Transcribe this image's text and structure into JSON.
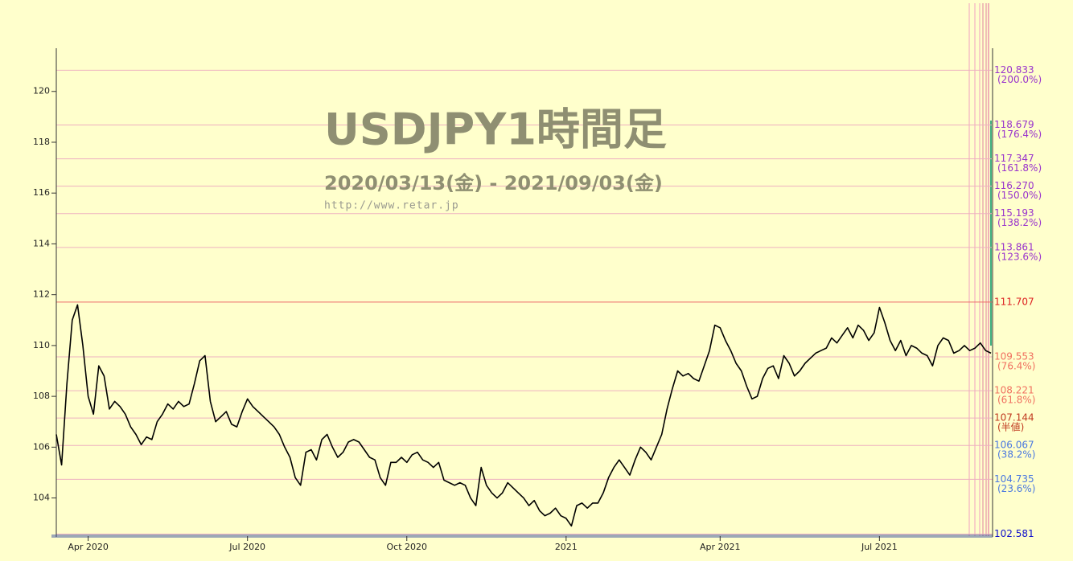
{
  "chart_data": {
    "type": "line",
    "title": "USDJPY1時間足",
    "subtitle": "2020/03/13(金) - 2021/09/03(金)",
    "source": "http://www.retar.jp",
    "color": "#000000",
    "categories": [
      null,
      null,
      null,
      null,
      null,
      null,
      "Apr 2020",
      null,
      null,
      null,
      null,
      null,
      null,
      null,
      null,
      null,
      null,
      null,
      null,
      null,
      null,
      null,
      null,
      null,
      null,
      null,
      null,
      null,
      null,
      null,
      null,
      null,
      null,
      null,
      null,
      null,
      "Jul 2020",
      null,
      null,
      null,
      null,
      null,
      null,
      null,
      null,
      null,
      null,
      null,
      null,
      null,
      null,
      null,
      null,
      null,
      null,
      null,
      null,
      null,
      null,
      null,
      null,
      null,
      null,
      null,
      null,
      null,
      "Oct 2020",
      null,
      null,
      null,
      null,
      null,
      null,
      null,
      null,
      null,
      null,
      null,
      null,
      null,
      null,
      null,
      null,
      null,
      null,
      null,
      null,
      null,
      null,
      null,
      null,
      null,
      null,
      null,
      null,
      null,
      "2021",
      null,
      null,
      null,
      null,
      null,
      null,
      null,
      null,
      null,
      null,
      null,
      null,
      null,
      null,
      null,
      null,
      null,
      null,
      null,
      null,
      null,
      null,
      null,
      null,
      null,
      null,
      null,
      null,
      "Apr 2021",
      null,
      null,
      null,
      null,
      null,
      null,
      null,
      null,
      null,
      null,
      null,
      null,
      null,
      null,
      null,
      null,
      null,
      null,
      null,
      null,
      null,
      null,
      null,
      null,
      null,
      null,
      null,
      null,
      null,
      "Jul 2021",
      null,
      null,
      null,
      null,
      null,
      null,
      null,
      null,
      null,
      null,
      null,
      null,
      null,
      null,
      null,
      null,
      null,
      null,
      null,
      null,
      null
    ],
    "values": [
      106.5,
      105.3,
      108.5,
      111.0,
      111.6,
      110.0,
      108.0,
      107.3,
      109.2,
      108.8,
      107.5,
      107.8,
      107.6,
      107.3,
      106.8,
      106.5,
      106.1,
      106.4,
      106.3,
      107.0,
      107.3,
      107.7,
      107.5,
      107.8,
      107.6,
      107.7,
      108.5,
      109.4,
      109.6,
      107.8,
      107.0,
      107.2,
      107.4,
      106.9,
      106.8,
      107.4,
      107.9,
      107.6,
      107.4,
      107.2,
      107.0,
      106.8,
      106.5,
      106.0,
      105.6,
      104.8,
      104.5,
      105.8,
      105.9,
      105.5,
      106.3,
      106.5,
      106.0,
      105.6,
      105.8,
      106.2,
      106.3,
      106.2,
      105.9,
      105.6,
      105.5,
      104.8,
      104.5,
      105.4,
      105.4,
      105.6,
      105.4,
      105.7,
      105.8,
      105.5,
      105.4,
      105.2,
      105.4,
      104.7,
      104.6,
      104.5,
      104.6,
      104.5,
      104.0,
      103.7,
      105.2,
      104.5,
      104.2,
      104.0,
      104.2,
      104.6,
      104.4,
      104.2,
      104.0,
      103.7,
      103.9,
      103.5,
      103.3,
      103.4,
      103.6,
      103.3,
      103.2,
      102.9,
      103.7,
      103.8,
      103.6,
      103.8,
      103.8,
      104.2,
      104.8,
      105.2,
      105.5,
      105.2,
      104.9,
      105.5,
      106.0,
      105.8,
      105.5,
      106.0,
      106.5,
      107.5,
      108.3,
      109.0,
      108.8,
      108.9,
      108.7,
      108.6,
      109.2,
      109.8,
      110.8,
      110.7,
      110.2,
      109.8,
      109.3,
      109.0,
      108.4,
      107.9,
      108.0,
      108.7,
      109.1,
      109.2,
      108.7,
      109.6,
      109.3,
      108.8,
      109.0,
      109.3,
      109.5,
      109.7,
      109.8,
      109.9,
      110.3,
      110.1,
      110.4,
      110.7,
      110.3,
      110.8,
      110.6,
      110.2,
      110.5,
      111.5,
      110.9,
      110.2,
      109.8,
      110.2,
      109.6,
      110.0,
      109.9,
      109.7,
      109.6,
      109.2,
      110.0,
      110.3,
      110.2,
      109.7,
      109.8,
      110.0,
      109.8,
      109.9,
      110.1,
      109.8,
      109.7
    ],
    "ylim": [
      102.5,
      121.7
    ],
    "yticks": [
      104,
      106,
      108,
      110,
      112,
      114,
      116,
      118,
      120
    ],
    "grid": true,
    "levels": [
      {
        "value": 120.833,
        "label": "120.833",
        "note": "(200.0%)",
        "color": "#9933cc"
      },
      {
        "value": 118.679,
        "label": "118.679",
        "note": "(176.4%)",
        "color": "#9933cc"
      },
      {
        "value": 117.347,
        "label": "117.347",
        "note": "(161.8%)",
        "color": "#9933cc"
      },
      {
        "value": 116.27,
        "label": "116.270",
        "note": "(150.0%)",
        "color": "#9933cc"
      },
      {
        "value": 115.193,
        "label": "115.193",
        "note": "(138.2%)",
        "color": "#9933cc"
      },
      {
        "value": 113.861,
        "label": "113.861",
        "note": "(123.6%)",
        "color": "#9933cc"
      },
      {
        "value": 111.707,
        "label": "111.707",
        "color": "#dd2222"
      },
      {
        "value": 109.553,
        "label": "109.553",
        "note": "(76.4%)",
        "color": "#f07060"
      },
      {
        "value": 108.221,
        "label": "108.221",
        "note": "(61.8%)",
        "color": "#f07060"
      },
      {
        "value": 107.144,
        "label": "107.144",
        "note": "(半値)",
        "color": "#c03a20"
      },
      {
        "value": 106.067,
        "label": "106.067",
        "note": "(38.2%)",
        "color": "#4a78e0"
      },
      {
        "value": 104.735,
        "label": "104.735",
        "note": "(23.6%)",
        "color": "#4a78e0"
      },
      {
        "value": 102.581,
        "label": "102.581",
        "color": "#1010cc"
      }
    ]
  }
}
